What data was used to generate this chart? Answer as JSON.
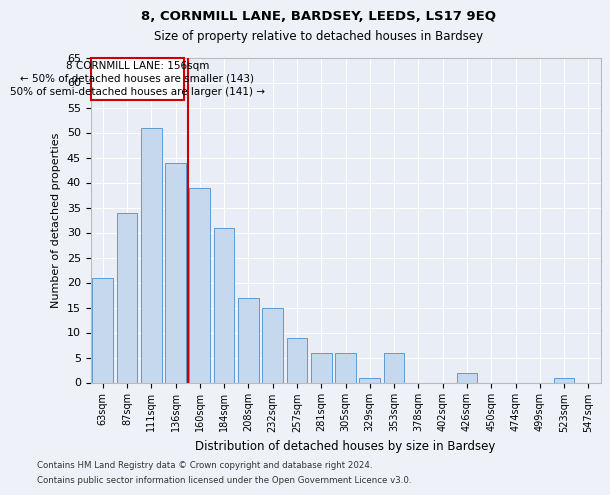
{
  "title": "8, CORNMILL LANE, BARDSEY, LEEDS, LS17 9EQ",
  "subtitle": "Size of property relative to detached houses in Bardsey",
  "xlabel": "Distribution of detached houses by size in Bardsey",
  "ylabel": "Number of detached properties",
  "categories": [
    "63sqm",
    "87sqm",
    "111sqm",
    "136sqm",
    "160sqm",
    "184sqm",
    "208sqm",
    "232sqm",
    "257sqm",
    "281sqm",
    "305sqm",
    "329sqm",
    "353sqm",
    "378sqm",
    "402sqm",
    "426sqm",
    "450sqm",
    "474sqm",
    "499sqm",
    "523sqm",
    "547sqm"
  ],
  "values": [
    21,
    34,
    51,
    44,
    39,
    31,
    17,
    15,
    9,
    6,
    6,
    1,
    6,
    0,
    0,
    2,
    0,
    0,
    0,
    1,
    0
  ],
  "bar_color": "#c5d8ed",
  "bar_edge_color": "#5b9bd5",
  "vline_color": "#cc0000",
  "ylim": [
    0,
    65
  ],
  "yticks": [
    0,
    5,
    10,
    15,
    20,
    25,
    30,
    35,
    40,
    45,
    50,
    55,
    60,
    65
  ],
  "annotation_text_line1": "8 CORNMILL LANE: 156sqm",
  "annotation_text_line2": "← 50% of detached houses are smaller (143)",
  "annotation_text_line3": "50% of semi-detached houses are larger (141) →",
  "footer_line1": "Contains HM Land Registry data © Crown copyright and database right 2024.",
  "footer_line2": "Contains public sector information licensed under the Open Government Licence v3.0.",
  "background_color": "#eef2f8",
  "plot_bg_color": "#e8edf6"
}
